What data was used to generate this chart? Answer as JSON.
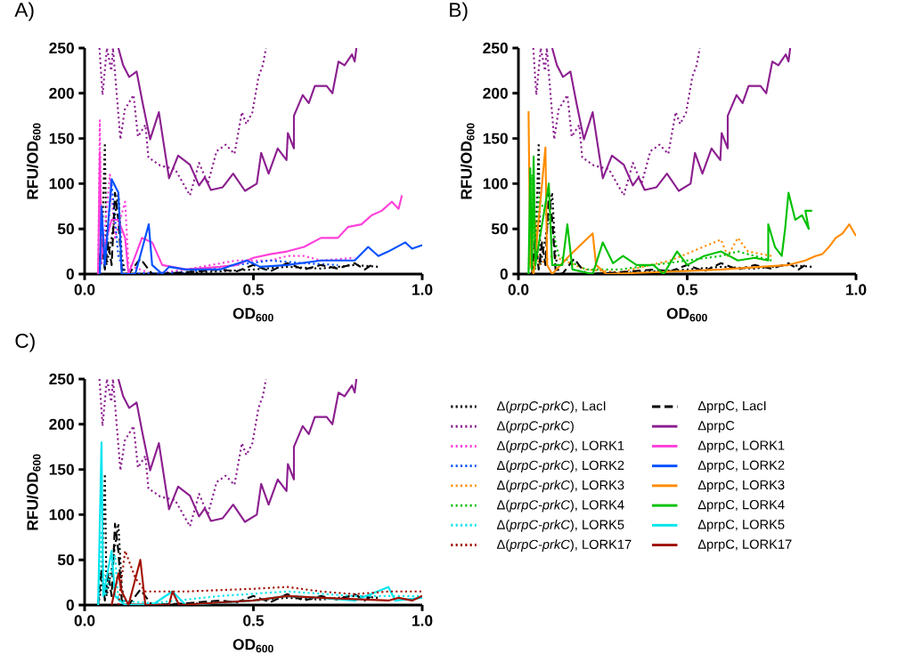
{
  "chart_data": [
    {
      "type": "line",
      "title": "A)",
      "xlabel": "OD$_{600}$",
      "ylabel": "RFU/OD$_{600}$",
      "xlim": [
        0,
        1
      ],
      "ylim": [
        0,
        250
      ],
      "xticks": [
        {
          "value": 0,
          "label": "0.0"
        },
        {
          "value": 0.5,
          "label": "0.5"
        },
        {
          "value": 1,
          "label": "1.0"
        }
      ],
      "yticks": [
        0,
        50,
        100,
        150,
        200,
        250
      ],
      "grid": false,
      "series": [
        {
          "color": "#000000",
          "line_style": "dotted",
          "x": [
            0.04,
            0.05,
            0.06,
            0.065,
            0.08,
            0.1,
            0.11,
            0.12,
            0.2,
            0.3,
            0.4,
            0.5,
            0.6,
            0.7,
            0.8,
            0.87
          ],
          "values": [
            0,
            20,
            145,
            10,
            40,
            90,
            20,
            0,
            0,
            1,
            3,
            5,
            8,
            6,
            10,
            8
          ]
        },
        {
          "color": "#8b1f8f",
          "line_style": "dotted",
          "x": [
            0.044,
            0.053,
            0.066,
            0.079,
            0.084,
            0.106,
            0.119,
            0.145,
            0.158,
            0.18,
            0.189,
            0.224,
            0.268,
            0.312,
            0.339,
            0.365,
            0.391,
            0.418,
            0.444,
            0.466,
            0.479,
            0.497,
            0.515,
            0.528,
            0.537
          ],
          "values": [
            250,
            198,
            250,
            225,
            250,
            149,
            182,
            198,
            152,
            165,
            129,
            120,
            116,
            87,
            123,
            100,
            136,
            143,
            133,
            179,
            166,
            179,
            218,
            231,
            250
          ]
        },
        {
          "color": "#ff3fd9",
          "line_style": "dotted",
          "x": [
            0.04,
            0.045,
            0.05,
            0.075,
            0.09,
            0.12,
            0.13,
            0.2,
            0.3,
            0.45,
            0.55,
            0.6,
            0.65,
            0.7,
            0.8
          ],
          "values": [
            0,
            170,
            10,
            110,
            40,
            80,
            10,
            0,
            5,
            15,
            15,
            20,
            20,
            15,
            18
          ]
        },
        {
          "color": "#0050ff",
          "line_style": "dotted",
          "x": [
            0.045,
            0.05,
            0.06,
            0.08,
            0.1,
            0.12,
            0.3,
            0.45,
            0.55,
            0.65,
            0.75
          ],
          "values": [
            0,
            70,
            5,
            100,
            20,
            0,
            2,
            10,
            15,
            12,
            10
          ]
        },
        {
          "color": "#000000",
          "line_style": "dashed",
          "x": [
            0.04,
            0.05,
            0.06,
            0.07,
            0.08,
            0.09,
            0.1,
            0.11,
            0.13,
            0.165,
            0.2,
            0.3,
            0.4,
            0.45,
            0.5,
            0.55,
            0.6,
            0.65,
            0.7,
            0.75,
            0.8,
            0.83,
            0.85
          ],
          "values": [
            0,
            40,
            5,
            35,
            10,
            90,
            60,
            5,
            0,
            17,
            0,
            2,
            5,
            3,
            10,
            3,
            12,
            5,
            10,
            6,
            12,
            5,
            10
          ]
        },
        {
          "color": "#8b1f8f",
          "line_style": "solid",
          "x": [
            0.1,
            0.114,
            0.132,
            0.154,
            0.172,
            0.194,
            0.22,
            0.25,
            0.277,
            0.312,
            0.339,
            0.356,
            0.374,
            0.409,
            0.44,
            0.475,
            0.51,
            0.523,
            0.545,
            0.572,
            0.598,
            0.602,
            0.62,
            0.62,
            0.646,
            0.664,
            0.682,
            0.717,
            0.734,
            0.752,
            0.77,
            0.792,
            0.8,
            0.805
          ],
          "values": [
            250,
            231,
            218,
            224,
            189,
            149,
            179,
            106,
            131,
            121,
            98,
            107,
            93,
            96,
            111,
            92,
            100,
            134,
            111,
            139,
            126,
            156,
            139,
            175,
            198,
            189,
            208,
            208,
            200,
            235,
            231,
            243,
            235,
            250
          ]
        },
        {
          "color": "#ff3fd9",
          "line_style": "solid",
          "x": [
            0.04,
            0.045,
            0.05,
            0.08,
            0.1,
            0.12,
            0.13,
            0.17,
            0.2,
            0.23,
            0.3,
            0.4,
            0.45,
            0.5,
            0.55,
            0.6,
            0.65,
            0.7,
            0.75,
            0.78,
            0.82,
            0.85,
            0.88,
            0.91,
            0.93,
            0.94
          ],
          "values": [
            0,
            135,
            20,
            60,
            60,
            40,
            0,
            40,
            35,
            10,
            5,
            8,
            10,
            18,
            22,
            25,
            30,
            40,
            40,
            52,
            55,
            65,
            70,
            80,
            72,
            87
          ]
        },
        {
          "color": "#0050ff",
          "line_style": "solid",
          "x": [
            0.045,
            0.05,
            0.06,
            0.08,
            0.1,
            0.11,
            0.15,
            0.19,
            0.2,
            0.23,
            0.25,
            0.3,
            0.4,
            0.48,
            0.52,
            0.6,
            0.7,
            0.8,
            0.84,
            0.87,
            0.9,
            0.95,
            0.97,
            1.0
          ],
          "values": [
            0,
            75,
            10,
            105,
            90,
            0,
            0,
            55,
            10,
            0,
            8,
            5,
            5,
            15,
            8,
            10,
            15,
            15,
            30,
            20,
            25,
            35,
            28,
            32
          ]
        }
      ]
    },
    {
      "type": "line",
      "title": "B)",
      "xlabel": "OD$_{600}$",
      "ylabel": "RFU/OD$_{600}$",
      "xlim": [
        0,
        1
      ],
      "ylim": [
        0,
        250
      ],
      "xticks": [
        {
          "value": 0,
          "label": "0.0"
        },
        {
          "value": 0.5,
          "label": "0.5"
        },
        {
          "value": 1,
          "label": "1.0"
        }
      ],
      "yticks": [
        0,
        50,
        100,
        150,
        200,
        250
      ],
      "grid": false,
      "series": [
        {
          "color": "#000000",
          "line_style": "dotted",
          "x": [
            0.04,
            0.05,
            0.06,
            0.065,
            0.08,
            0.1,
            0.11,
            0.12,
            0.2,
            0.3,
            0.4,
            0.5,
            0.6,
            0.7,
            0.8,
            0.87
          ],
          "values": [
            0,
            20,
            145,
            10,
            40,
            90,
            20,
            0,
            0,
            1,
            3,
            5,
            8,
            6,
            10,
            8
          ]
        },
        {
          "color": "#8b1f8f",
          "line_style": "dotted",
          "x": [
            0.044,
            0.053,
            0.066,
            0.079,
            0.084,
            0.106,
            0.119,
            0.145,
            0.158,
            0.18,
            0.189,
            0.224,
            0.268,
            0.312,
            0.339,
            0.365,
            0.391,
            0.418,
            0.444,
            0.466,
            0.479,
            0.497,
            0.515,
            0.528,
            0.537
          ],
          "values": [
            250,
            198,
            250,
            225,
            250,
            149,
            182,
            198,
            152,
            165,
            129,
            120,
            116,
            87,
            123,
            100,
            136,
            143,
            133,
            179,
            166,
            179,
            218,
            231,
            250
          ]
        },
        {
          "color": "#ff8c00",
          "line_style": "dotted",
          "x": [
            0.04,
            0.05,
            0.06,
            0.1,
            0.2,
            0.3,
            0.45,
            0.6,
            0.62,
            0.65,
            0.68,
            0.75
          ],
          "values": [
            0,
            60,
            10,
            20,
            5,
            2,
            15,
            38,
            20,
            40,
            25,
            20
          ]
        },
        {
          "color": "#00c000",
          "line_style": "dotted",
          "x": [
            0.03,
            0.04,
            0.05,
            0.06,
            0.1,
            0.12,
            0.2,
            0.3,
            0.4,
            0.5,
            0.6,
            0.65,
            0.7,
            0.75
          ],
          "values": [
            0,
            110,
            5,
            85,
            50,
            20,
            5,
            5,
            10,
            15,
            20,
            25,
            20,
            15
          ]
        },
        {
          "color": "#000000",
          "line_style": "dashed",
          "x": [
            0.04,
            0.05,
            0.06,
            0.07,
            0.08,
            0.09,
            0.1,
            0.11,
            0.13,
            0.165,
            0.2,
            0.3,
            0.4,
            0.45,
            0.5,
            0.55,
            0.6,
            0.65,
            0.7,
            0.75,
            0.8,
            0.83,
            0.85
          ],
          "values": [
            0,
            40,
            5,
            35,
            10,
            90,
            60,
            5,
            0,
            17,
            0,
            2,
            5,
            3,
            10,
            3,
            12,
            5,
            10,
            6,
            12,
            5,
            10
          ]
        },
        {
          "color": "#8b1f8f",
          "line_style": "solid",
          "x": [
            0.1,
            0.114,
            0.132,
            0.154,
            0.172,
            0.194,
            0.22,
            0.25,
            0.277,
            0.312,
            0.339,
            0.356,
            0.374,
            0.409,
            0.44,
            0.475,
            0.51,
            0.523,
            0.545,
            0.572,
            0.598,
            0.602,
            0.62,
            0.62,
            0.646,
            0.664,
            0.682,
            0.717,
            0.734,
            0.752,
            0.77,
            0.792,
            0.8,
            0.805
          ],
          "values": [
            250,
            231,
            218,
            224,
            189,
            149,
            179,
            106,
            131,
            121,
            98,
            107,
            93,
            96,
            111,
            92,
            100,
            134,
            111,
            139,
            126,
            156,
            139,
            175,
            198,
            189,
            208,
            208,
            200,
            235,
            231,
            243,
            235,
            250
          ]
        },
        {
          "color": "#ff8c00",
          "line_style": "solid",
          "x": [
            0.03,
            0.035,
            0.045,
            0.08,
            0.085,
            0.1,
            0.15,
            0.22,
            0.23,
            0.26,
            0.4,
            0.6,
            0.8,
            0.85,
            0.88,
            0.9,
            0.92,
            0.94,
            0.96,
            0.98,
            1.0
          ],
          "values": [
            180,
            10,
            0,
            140,
            10,
            0,
            20,
            45,
            10,
            0,
            2,
            5,
            10,
            15,
            20,
            22,
            30,
            40,
            45,
            55,
            42
          ]
        },
        {
          "color": "#00c000",
          "line_style": "solid",
          "x": [
            0.03,
            0.035,
            0.04,
            0.045,
            0.05,
            0.09,
            0.1,
            0.13,
            0.145,
            0.16,
            0.22,
            0.25,
            0.28,
            0.31,
            0.35,
            0.4,
            0.43,
            0.47,
            0.5,
            0.55,
            0.6,
            0.65,
            0.7,
            0.74,
            0.74,
            0.76,
            0.78,
            0.79,
            0.8,
            0.82,
            0.84,
            0.86,
            0.85,
            0.87
          ],
          "values": [
            0,
            117,
            5,
            130,
            10,
            100,
            10,
            10,
            55,
            5,
            0,
            35,
            12,
            20,
            10,
            10,
            0,
            25,
            10,
            20,
            25,
            15,
            18,
            15,
            55,
            30,
            20,
            50,
            90,
            60,
            65,
            50,
            70,
            70
          ]
        }
      ]
    },
    {
      "type": "line",
      "title": "C)",
      "xlabel": "OD$_{600}$",
      "ylabel": "RFU/OD$_{600}$",
      "xlim": [
        0,
        1
      ],
      "ylim": [
        0,
        250
      ],
      "xticks": [
        {
          "value": 0,
          "label": "0.0"
        },
        {
          "value": 0.5,
          "label": "0.5"
        },
        {
          "value": 1,
          "label": "1.0"
        }
      ],
      "yticks": [
        0,
        50,
        100,
        150,
        200,
        250
      ],
      "grid": false,
      "legend": "right",
      "series": [
        {
          "name": "Δ(*prpC-prkC*), LacI",
          "color": "#000000",
          "line_style": "dotted",
          "x": [
            0.04,
            0.05,
            0.06,
            0.065,
            0.08,
            0.1,
            0.11,
            0.12,
            0.2,
            0.3,
            0.4,
            0.5,
            0.6,
            0.7,
            0.8,
            0.87
          ],
          "values": [
            0,
            20,
            145,
            10,
            40,
            90,
            20,
            0,
            0,
            1,
            3,
            5,
            8,
            6,
            10,
            8
          ]
        },
        {
          "name": "ΔprpC, LacI",
          "color": "#000000",
          "line_style": "dashed",
          "x": [
            0.04,
            0.05,
            0.06,
            0.07,
            0.08,
            0.09,
            0.1,
            0.11,
            0.13,
            0.165,
            0.2,
            0.3,
            0.4,
            0.45,
            0.5,
            0.55,
            0.6,
            0.65,
            0.7,
            0.75,
            0.8,
            0.83,
            0.85
          ],
          "values": [
            0,
            40,
            5,
            35,
            10,
            90,
            60,
            5,
            0,
            17,
            0,
            2,
            5,
            3,
            10,
            3,
            12,
            5,
            10,
            6,
            12,
            5,
            10
          ]
        },
        {
          "name": "Δ(*prpC-prkC*)",
          "color": "#8b1f8f",
          "line_style": "dotted",
          "x": [
            0.044,
            0.053,
            0.066,
            0.079,
            0.084,
            0.106,
            0.119,
            0.145,
            0.158,
            0.18,
            0.189,
            0.224,
            0.268,
            0.312,
            0.339,
            0.365,
            0.391,
            0.418,
            0.444,
            0.466,
            0.479,
            0.497,
            0.515,
            0.528,
            0.537
          ],
          "values": [
            250,
            198,
            250,
            225,
            250,
            149,
            182,
            198,
            152,
            165,
            129,
            120,
            116,
            87,
            123,
            100,
            136,
            143,
            133,
            179,
            166,
            179,
            218,
            231,
            250
          ]
        },
        {
          "name": "ΔprpC",
          "color": "#8b1f8f",
          "line_style": "solid",
          "x": [
            0.1,
            0.114,
            0.132,
            0.154,
            0.172,
            0.194,
            0.22,
            0.25,
            0.277,
            0.312,
            0.339,
            0.356,
            0.374,
            0.409,
            0.44,
            0.475,
            0.51,
            0.523,
            0.545,
            0.572,
            0.598,
            0.602,
            0.62,
            0.62,
            0.646,
            0.664,
            0.682,
            0.717,
            0.734,
            0.752,
            0.77,
            0.792,
            0.8,
            0.805
          ],
          "values": [
            250,
            231,
            218,
            224,
            189,
            149,
            179,
            106,
            131,
            121,
            98,
            107,
            93,
            96,
            111,
            92,
            100,
            134,
            111,
            139,
            126,
            156,
            139,
            175,
            198,
            189,
            208,
            208,
            200,
            235,
            231,
            243,
            235,
            250
          ]
        },
        {
          "name": "Δ(*prpC-prkC*), LORK1",
          "color": "#ff3fd9",
          "line_style": "dotted"
        },
        {
          "name": "ΔprpC, LORK1",
          "color": "#ff3fd9",
          "line_style": "solid"
        },
        {
          "name": "Δ(*prpC-prkC*), LORK2",
          "color": "#0050ff",
          "line_style": "dotted"
        },
        {
          "name": "ΔprpC, LORK2",
          "color": "#0050ff",
          "line_style": "solid"
        },
        {
          "name": "Δ(*prpC-prkC*), LORK3",
          "color": "#ff8c00",
          "line_style": "dotted"
        },
        {
          "name": "ΔprpC, LORK3",
          "color": "#ff8c00",
          "line_style": "solid"
        },
        {
          "name": "Δ(*prpC-prkC*), LORK4",
          "color": "#00c000",
          "line_style": "dotted"
        },
        {
          "name": "ΔprpC, LORK4",
          "color": "#00c000",
          "line_style": "solid"
        },
        {
          "name": "Δ(*prpC-prkC*), LORK5",
          "color": "#00e5ee",
          "line_style": "dotted",
          "x": [
            0.04,
            0.05,
            0.06,
            0.09,
            0.1,
            0.2,
            0.4,
            0.6,
            0.8,
            1.0
          ],
          "values": [
            0,
            80,
            10,
            55,
            5,
            2,
            10,
            15,
            10,
            10
          ]
        },
        {
          "name": "ΔprpC, LORK5",
          "color": "#00e5ee",
          "line_style": "solid",
          "x": [
            0.04,
            0.05,
            0.055,
            0.08,
            0.09,
            0.12,
            0.2,
            0.26,
            0.3,
            0.5,
            0.6,
            0.7,
            0.8,
            0.9,
            0.92,
            1.0
          ],
          "values": [
            0,
            180,
            10,
            60,
            10,
            0,
            0,
            15,
            0,
            5,
            10,
            8,
            5,
            20,
            5,
            8
          ]
        },
        {
          "name": "Δ(*prpC-prkC*), LORK17",
          "color": "#a01000",
          "line_style": "dotted",
          "x": [
            0.1,
            0.12,
            0.15,
            0.18,
            0.3,
            0.5,
            0.6,
            0.7,
            0.8,
            0.9,
            1.0
          ],
          "values": [
            0,
            60,
            30,
            15,
            15,
            18,
            20,
            15,
            12,
            15,
            15
          ]
        },
        {
          "name": "ΔprpC, LORK17",
          "color": "#a01000",
          "line_style": "solid",
          "x": [
            0.08,
            0.1,
            0.11,
            0.13,
            0.165,
            0.18,
            0.25,
            0.26,
            0.28,
            0.5,
            0.6,
            0.7,
            0.9,
            0.93,
            0.97,
            1.0
          ],
          "values": [
            0,
            35,
            15,
            0,
            50,
            0,
            0,
            15,
            0,
            5,
            10,
            8,
            5,
            8,
            5,
            10
          ]
        }
      ]
    }
  ]
}
